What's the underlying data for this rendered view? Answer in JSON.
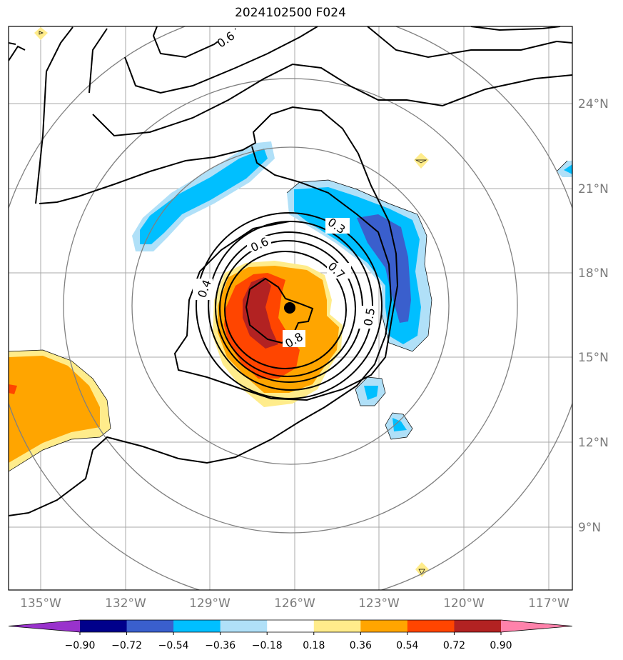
{
  "title": "2024102500 F024",
  "map": {
    "lon_labels": [
      "135°W",
      "132°W",
      "129°W",
      "126°W",
      "123°W",
      "120°W",
      "117°W"
    ],
    "lat_labels": [
      "24°N",
      "21°N",
      "18°N",
      "15°N",
      "12°N",
      "9°N"
    ],
    "contour_labels": [
      "0.6",
      "0.3",
      "0.6",
      "0.7",
      "0.4",
      "0.5",
      "0.8"
    ],
    "center_marker": "storm-center",
    "fill_colors": {
      "neg_90": "#9932cc",
      "neg_72": "#00008b",
      "neg_54": "#3a5fcd",
      "neg_36": "#00bfff",
      "neg_18": "#b0e0f8",
      "zero": "#ffffff",
      "pos_18": "#ffec8b",
      "pos_36": "#ffa500",
      "pos_54": "#ff4500",
      "pos_72": "#b22222",
      "pos_90": "#ff82ab"
    }
  },
  "colorbar": {
    "ticks": [
      "−0.90",
      "−0.72",
      "−0.54",
      "−0.36",
      "−0.18",
      "0.18",
      "0.36",
      "0.54",
      "0.72",
      "0.90"
    ],
    "colors": [
      "#9932cc",
      "#00008b",
      "#3a5fcd",
      "#00bfff",
      "#b0e0f8",
      "#ffffff",
      "#ffec8b",
      "#ffa500",
      "#ff4500",
      "#b22222",
      "#ff82ab"
    ]
  }
}
